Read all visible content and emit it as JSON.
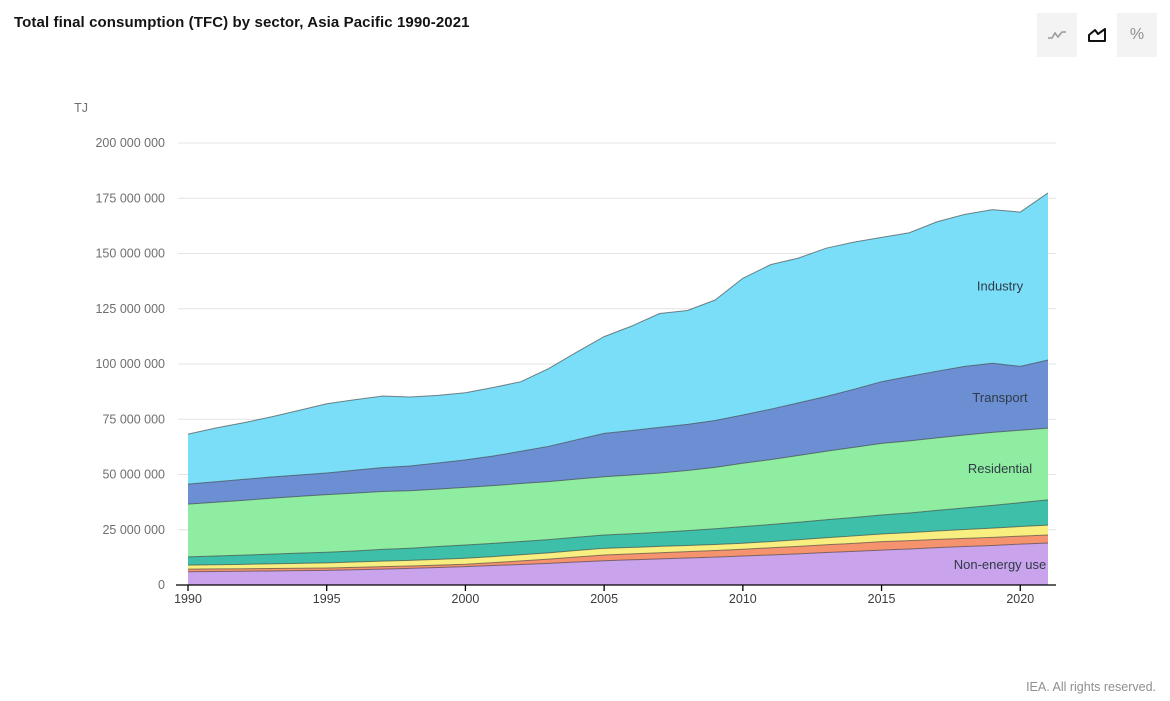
{
  "header": {
    "title": "Total final consumption (TFC) by sector, Asia Pacific 1990-2021",
    "view_toggle": {
      "options": [
        {
          "icon": "line-chart-icon",
          "active": false
        },
        {
          "icon": "area-chart-icon",
          "active": true
        },
        {
          "icon": "percent-icon",
          "active": false,
          "glyph": "%"
        }
      ]
    }
  },
  "footer": {
    "credit": "IEA. All rights reserved."
  },
  "chart_data": {
    "type": "area",
    "stacked": true,
    "title": "Total final consumption (TFC) by sector, Asia Pacific 1990-2021",
    "unit_label": "TJ",
    "xlabel": "",
    "ylabel": "TJ",
    "ylim": [
      0,
      200000000
    ],
    "grid": true,
    "legend": "inline-area-labels",
    "x": [
      1990,
      1991,
      1992,
      1993,
      1994,
      1995,
      1996,
      1997,
      1998,
      1999,
      2000,
      2001,
      2002,
      2003,
      2004,
      2005,
      2006,
      2007,
      2008,
      2009,
      2010,
      2011,
      2012,
      2013,
      2014,
      2015,
      2016,
      2017,
      2018,
      2019,
      2020,
      2021
    ],
    "x_ticks": [
      1990,
      1995,
      2000,
      2005,
      2010,
      2015,
      2020
    ],
    "y_ticks": [
      {
        "value": 0,
        "label": "0"
      },
      {
        "value": 25000000,
        "label": "25 000 000"
      },
      {
        "value": 50000000,
        "label": "50 000 000"
      },
      {
        "value": 75000000,
        "label": "75 000 000"
      },
      {
        "value": 100000000,
        "label": "100 000 000"
      },
      {
        "value": 125000000,
        "label": "125 000 000"
      },
      {
        "value": 150000000,
        "label": "150 000 000"
      },
      {
        "value": 175000000,
        "label": "175 000 000"
      },
      {
        "value": 200000000,
        "label": "200 000 000"
      }
    ],
    "series": [
      {
        "label": "Non-energy use",
        "color": "#c9a3ec",
        "values": [
          6000000,
          6100000,
          6200000,
          6350000,
          6500000,
          6600000,
          6900000,
          7200000,
          7500000,
          7900000,
          8300000,
          8800000,
          9300000,
          9800000,
          10400000,
          11000000,
          11400000,
          11800000,
          12200000,
          12600000,
          13100000,
          13600000,
          14100000,
          14700000,
          15200000,
          15800000,
          16300000,
          16900000,
          17400000,
          17900000,
          18500000,
          19000000
        ]
      },
      {
        "label": "",
        "color": "#f6936f",
        "values": [
          1200000,
          1170000,
          1150000,
          1120000,
          1100000,
          1100000,
          1100000,
          1100000,
          1100000,
          1100000,
          1100000,
          1300000,
          1600000,
          1900000,
          2250000,
          2600000,
          2700000,
          2800000,
          2900000,
          3000000,
          3100000,
          3250000,
          3400000,
          3500000,
          3650000,
          3800000,
          3800000,
          3750000,
          3700000,
          3650000,
          3600000,
          3600000
        ]
      },
      {
        "label": "",
        "color": "#f8ef80",
        "values": [
          1800000,
          1900000,
          2000000,
          2100000,
          2200000,
          2300000,
          2400000,
          2500000,
          2550000,
          2600000,
          2700000,
          2750000,
          2800000,
          2850000,
          2950000,
          3000000,
          2900000,
          2850000,
          2800000,
          2750000,
          2700000,
          2800000,
          3000000,
          3200000,
          3350000,
          3500000,
          3600000,
          3800000,
          4000000,
          4200000,
          4350000,
          4500000
        ]
      },
      {
        "label": "",
        "color": "#3dbfa9",
        "values": [
          3750000,
          3950000,
          4150000,
          4400000,
          4600000,
          4800000,
          5000000,
          5300000,
          5500000,
          5800000,
          6000000,
          6000000,
          6000000,
          6000000,
          6000000,
          6000000,
          6200000,
          6400000,
          6700000,
          7100000,
          7500000,
          7700000,
          7900000,
          8100000,
          8350000,
          8600000,
          8900000,
          9300000,
          9800000,
          10300000,
          10800000,
          11400000
        ]
      },
      {
        "label": "Residential",
        "color": "#8feda1",
        "values": [
          23850000,
          24300000,
          24800000,
          25300000,
          25700000,
          26100000,
          26200000,
          26200000,
          26000000,
          26000000,
          26100000,
          26100000,
          26200000,
          26200000,
          26300000,
          26400000,
          26600000,
          26800000,
          27200000,
          27800000,
          28700000,
          29400000,
          30200000,
          31000000,
          31700000,
          32400000,
          32600000,
          32800000,
          33000000,
          33000000,
          32800000,
          32500000
        ]
      },
      {
        "label": "Transport",
        "color": "#6c8fd3",
        "values": [
          9050000,
          9300000,
          9500000,
          9600000,
          9700000,
          9800000,
          10300000,
          10800000,
          11200000,
          11800000,
          12400000,
          13400000,
          14600000,
          16000000,
          17800000,
          19600000,
          20100000,
          20700000,
          20900000,
          21200000,
          21800000,
          22800000,
          23800000,
          24800000,
          26300000,
          27900000,
          29200000,
          30200000,
          31000000,
          31300000,
          28900000,
          30800000
        ]
      },
      {
        "label": "Industry",
        "color": "#7bdef8",
        "values": [
          22600000,
          24300000,
          25600000,
          27200000,
          29200000,
          31300000,
          31900000,
          32400000,
          31200000,
          30600000,
          30400000,
          31000000,
          31500000,
          35200000,
          39600000,
          43800000,
          47300000,
          51500000,
          51500000,
          54500000,
          61900000,
          65400000,
          65500000,
          67100000,
          66600000,
          65300000,
          65000000,
          67600000,
          68800000,
          69500000,
          69800000,
          75600000
        ]
      }
    ],
    "colors": {
      "grid": "#e4e4e4",
      "axis": "#000000",
      "y_tick_text": "#6f6f6f",
      "x_tick_text": "#3c3c3c",
      "area_label_text": "#2f3b46",
      "boundary_stroke": "rgba(55,55,55,0.6)"
    }
  }
}
